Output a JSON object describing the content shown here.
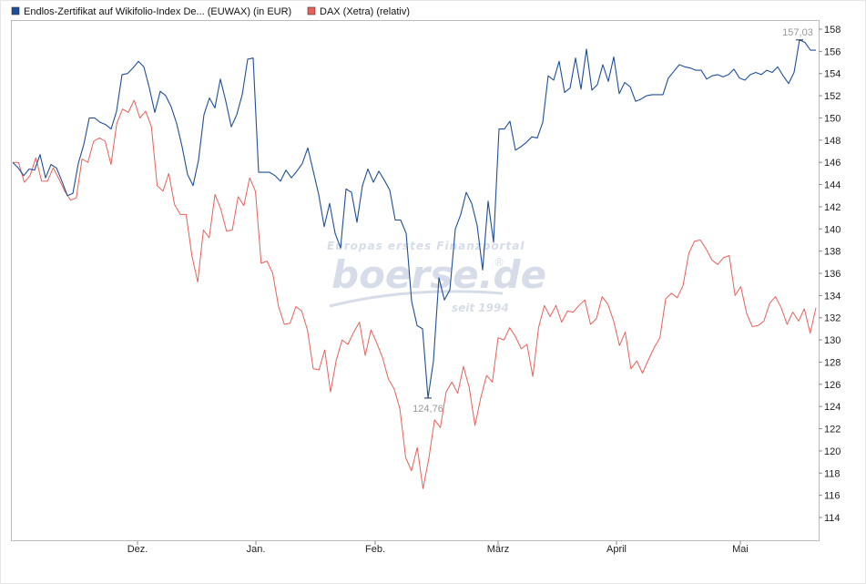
{
  "legend": [
    {
      "label": "Endlos-Zertifikat auf Wikifolio-Index De... (EUWAX) (in EUR)",
      "color": "#1f4e9c"
    },
    {
      "label": "DAX (Xetra) (relativ)",
      "color": "#e8605a"
    }
  ],
  "watermark": {
    "tagline": "Europas erstes Finanzportal",
    "brand": "boerse.de",
    "registered": "®",
    "since": "seit 1994"
  },
  "annotations": {
    "max_label": "157,03",
    "min_label": "124,76"
  },
  "colors": {
    "series1": "#1f4e9c",
    "series2": "#e8605a",
    "plot_border": "#bbbbbb",
    "watermark": "#d6dde8"
  },
  "chart_data": {
    "type": "line",
    "title": "",
    "xlabel": "",
    "ylabel": "",
    "ylim": [
      112,
      159
    ],
    "yticks": [
      114,
      116,
      118,
      120,
      122,
      124,
      126,
      128,
      130,
      132,
      134,
      136,
      138,
      140,
      142,
      144,
      146,
      148,
      150,
      152,
      154,
      156,
      158
    ],
    "xticks": [
      "Dez.",
      "Jan.",
      "Feb.",
      "März",
      "April",
      "Mai"
    ],
    "grid": false,
    "legend_position": "top-left",
    "series": [
      {
        "name": "Endlos-Zertifikat auf Wikifolio-Index De... (EUWAX) (in EUR)",
        "values": [
          146,
          145.5,
          144.8,
          145.4,
          145.3,
          146.7,
          144.6,
          145.8,
          145.5,
          144.3,
          143,
          143.2,
          145.9,
          147.6,
          150,
          150,
          149.6,
          149.4,
          149,
          150.6,
          153.9,
          154,
          154.5,
          155.1,
          154.6,
          152.7,
          150.5,
          152.4,
          152,
          151,
          149.5,
          147.4,
          144.9,
          143.9,
          146.2,
          150.3,
          151.8,
          150.9,
          153.5,
          151.5,
          149.2,
          150.3,
          152.1,
          155.3,
          155.4,
          145.1,
          145.1,
          145.1,
          144.8,
          144.3,
          145.3,
          144.6,
          145.2,
          145.9,
          147.3,
          145.2,
          143.1,
          140.2,
          142.3,
          139.6,
          138.3,
          143.6,
          143.3,
          140.6,
          143.9,
          145.4,
          144.2,
          145.2,
          144.4,
          143.5,
          140.8,
          140.8,
          139.6,
          133.5,
          131.3,
          131,
          124.76,
          128.1,
          135.6,
          133.6,
          134.5,
          140,
          141.3,
          143.3,
          142.3,
          140.3,
          136.3,
          142.5,
          138.8,
          149,
          149,
          149.7,
          147.1,
          147.4,
          147.8,
          148.3,
          148.2,
          149.6,
          153.8,
          153.4,
          155.1,
          152.3,
          152.7,
          155.4,
          152.6,
          156.2,
          152.5,
          153,
          154.8,
          153.3,
          155.5,
          152.2,
          153.2,
          152.8,
          151.5,
          151.7,
          152,
          152.1,
          152.1,
          152.1,
          153.6,
          154.2,
          154.8,
          154.6,
          154.5,
          154.3,
          154.3,
          153.5,
          153.8,
          153.9,
          153.7,
          153.9,
          154.4,
          153.6,
          153.4,
          153.9,
          154.1,
          153.9,
          154.3,
          154.1,
          154.6,
          153.8,
          153.1,
          154.1,
          157.03,
          156.8,
          156.1,
          156.1
        ]
      },
      {
        "name": "DAX (Xetra) (relativ)",
        "values": [
          146,
          146,
          144.2,
          144.8,
          146.4,
          144.3,
          144.3,
          145.5,
          144.5,
          143.4,
          142.6,
          142.8,
          146.3,
          146,
          147.9,
          148.2,
          147.9,
          145.8,
          149.5,
          150.8,
          150.5,
          151.6,
          150,
          150.6,
          149.2,
          143.9,
          143.4,
          145,
          142.2,
          141.3,
          141.3,
          137.6,
          135.2,
          139.9,
          139.2,
          143.1,
          141.8,
          139.8,
          139.9,
          142.9,
          142.1,
          144.6,
          143.4,
          136.9,
          137.1,
          136,
          133,
          131.4,
          131.5,
          133,
          132.6,
          130.9,
          127.4,
          127.3,
          129.1,
          125.3,
          128.2,
          130,
          129.6,
          130.7,
          131.6,
          128.6,
          130.9,
          129.7,
          128.4,
          126.5,
          125.6,
          123.8,
          119.4,
          118.2,
          120.3,
          116.6,
          119.3,
          122.8,
          122.1,
          125.3,
          126.2,
          125.2,
          127.6,
          125.7,
          122.3,
          124.8,
          126.8,
          126.2,
          130.2,
          130,
          131.1,
          130.3,
          129.2,
          129.6,
          126.7,
          131.1,
          133.1,
          132.1,
          133.1,
          131.6,
          132.6,
          132.5,
          133.1,
          133.6,
          131.4,
          131.9,
          133.9,
          133.2,
          131.7,
          129.5,
          130.7,
          127.4,
          128.1,
          127,
          128.2,
          129.3,
          130.2,
          133.7,
          134.2,
          133.8,
          134.9,
          137.8,
          138.9,
          139,
          138.2,
          137.2,
          136.8,
          137.4,
          137.6,
          134,
          134.8,
          132.4,
          131.2,
          131.3,
          131.7,
          133.3,
          133.9,
          132.9,
          131.4,
          132.5,
          131.7,
          132.8,
          130.6,
          132.9
        ]
      }
    ]
  }
}
